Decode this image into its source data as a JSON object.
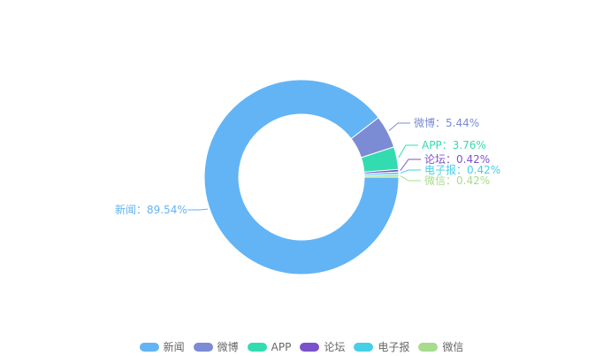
{
  "chart_data": {
    "type": "pie",
    "donut": true,
    "series": [
      {
        "name": "新闻",
        "percent": 89.54,
        "label": "新闻：89.54%",
        "color": "#62b4f5"
      },
      {
        "name": "微博",
        "percent": 5.44,
        "label": "微博：5.44%",
        "color": "#7b8bd4"
      },
      {
        "name": "APP",
        "percent": 3.76,
        "label": "APP：3.76%",
        "color": "#33dcb0"
      },
      {
        "name": "论坛",
        "percent": 0.42,
        "label": "论坛：0.42%",
        "color": "#7b52cc"
      },
      {
        "name": "电子报",
        "percent": 0.42,
        "label": "电子报：0.42%",
        "color": "#46cfe6"
      },
      {
        "name": "微信",
        "percent": 0.42,
        "label": "微信：0.42%",
        "color": "#a6dc8c"
      }
    ],
    "legend_position": "bottom-center"
  }
}
